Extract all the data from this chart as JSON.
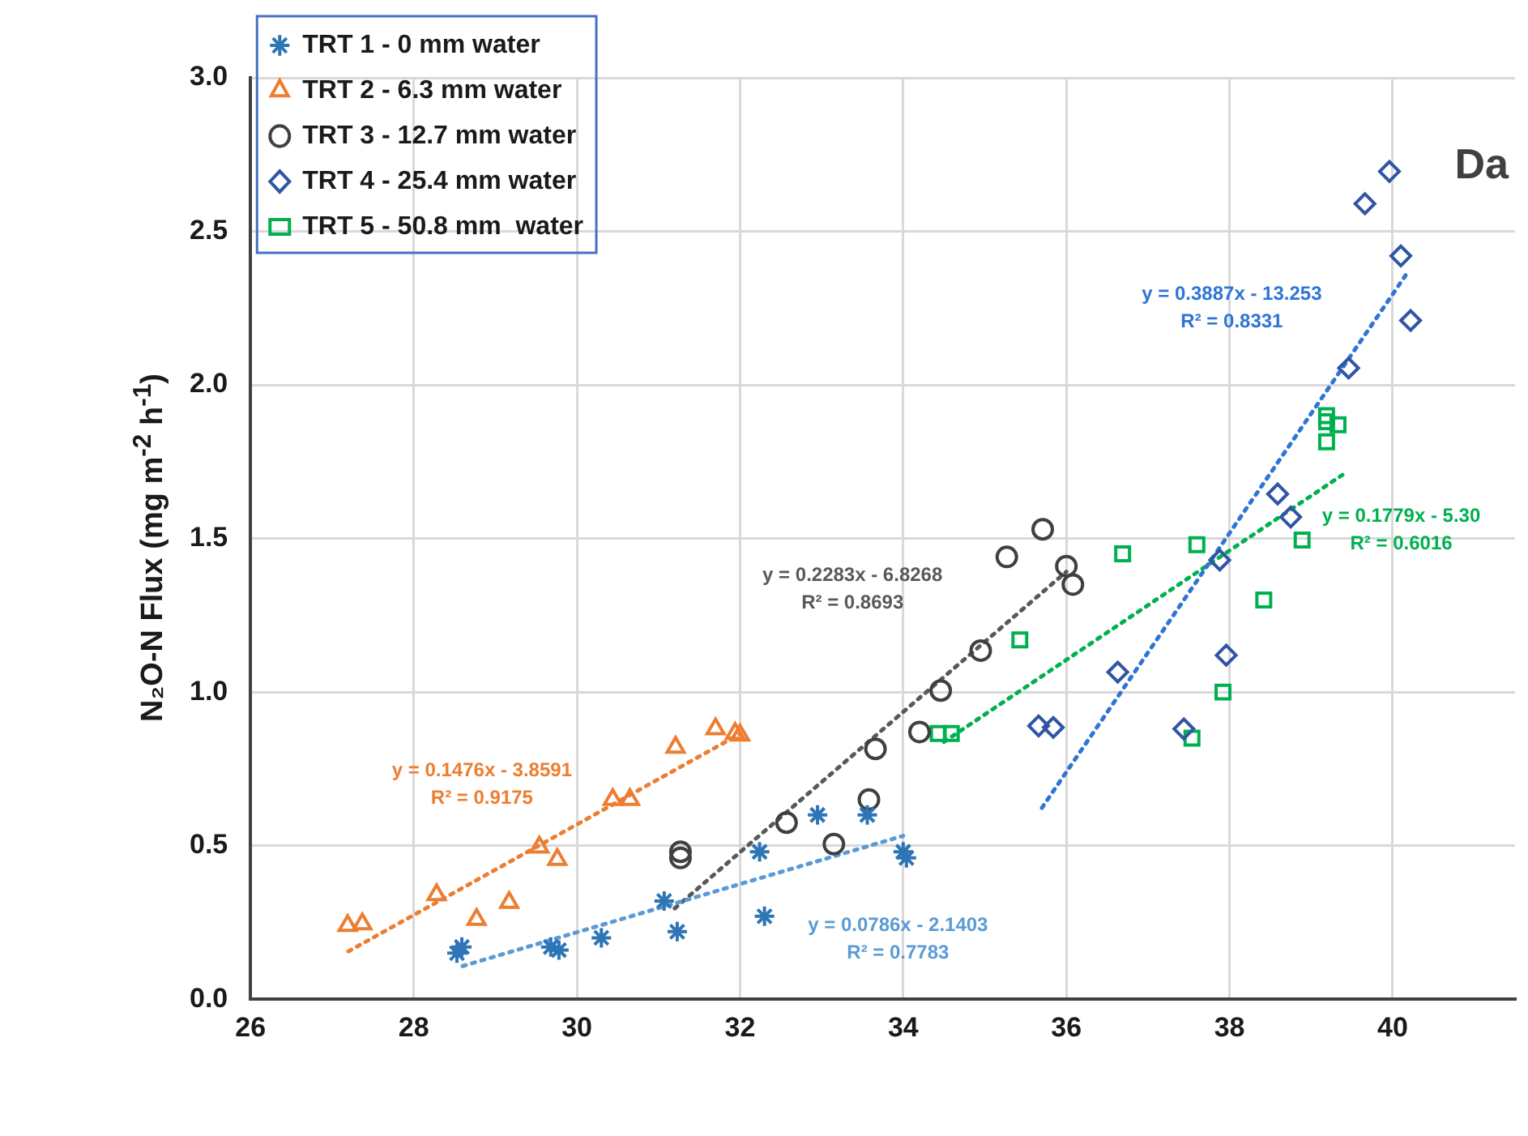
{
  "chart_data": {
    "type": "scatter",
    "title": "Da",
    "ylabel": "N₂O-N Flux (mg m$^{-2}$ h$^{-1}$)",
    "xlim": [
      26,
      41.5
    ],
    "xticks": [
      26,
      28,
      30,
      32,
      34,
      36,
      38,
      40
    ],
    "ylim": [
      0,
      3
    ],
    "yticks": [
      {
        "value": 0,
        "label": "0.0"
      },
      {
        "value": 0.5,
        "label": "0.5"
      },
      {
        "value": 1,
        "label": "1.0"
      },
      {
        "value": 1.5,
        "label": "1.5"
      },
      {
        "value": 2,
        "label": "2.0"
      },
      {
        "value": 2.5,
        "label": "2.5"
      },
      {
        "value": 3,
        "label": "3.0"
      }
    ],
    "grid": true,
    "legend": "top left",
    "series": [
      {
        "name": "TRT 1 - 0 mm water",
        "color": "#2e75b6",
        "marker": "cross",
        "x": [
          28.53,
          28.59,
          29.68,
          29.78,
          30.3,
          31.07,
          31.23,
          32.24,
          32.3,
          32.95,
          33.56,
          34.0,
          34.04
        ],
        "values": [
          0.15,
          0.17,
          0.17,
          0.16,
          0.2,
          0.32,
          0.22,
          0.48,
          0.27,
          0.6,
          0.6,
          0.48,
          0.46
        ]
      },
      {
        "name": "TRT 2 - 6.3 mm water",
        "color": "#ed7d31",
        "marker": "triangle",
        "x": [
          27.19,
          27.37,
          28.28,
          28.77,
          29.17,
          29.54,
          29.76,
          30.44,
          30.65,
          31.21,
          31.7,
          31.94,
          32.0
        ],
        "values": [
          0.24,
          0.245,
          0.34,
          0.26,
          0.315,
          0.495,
          0.455,
          0.65,
          0.65,
          0.82,
          0.88,
          0.865,
          0.86
        ]
      },
      {
        "name": "TRT 3 - 12.7 mm water",
        "color": "#404040",
        "marker": "circle",
        "x": [
          31.27,
          31.27,
          32.57,
          33.15,
          33.58,
          33.66,
          34.2,
          34.46,
          34.95,
          35.27,
          35.71,
          36.0,
          36.08
        ],
        "values": [
          0.48,
          0.46,
          0.575,
          0.505,
          0.65,
          0.815,
          0.87,
          1.005,
          1.135,
          1.44,
          1.53,
          1.41,
          1.35
        ]
      },
      {
        "name": "TRT 4 - 25.4 mm water",
        "color": "#2f55a4",
        "marker": "diamond",
        "x": [
          35.66,
          35.84,
          36.63,
          37.44,
          37.88,
          37.96,
          38.59,
          38.75,
          39.46,
          39.66,
          39.96,
          40.1,
          40.22
        ],
        "values": [
          0.89,
          0.885,
          1.065,
          0.88,
          1.43,
          1.12,
          1.645,
          1.57,
          2.055,
          2.59,
          2.695,
          2.42,
          2.21
        ]
      },
      {
        "name": "TRT 5 - 50.8 mm  water",
        "color": "#00b050",
        "marker": "square",
        "x": [
          34.43,
          34.59,
          35.43,
          36.69,
          37.6,
          37.54,
          37.92,
          38.42,
          38.89,
          39.19,
          39.19,
          39.33,
          39.19
        ],
        "values": [
          0.865,
          0.865,
          1.17,
          1.45,
          1.48,
          0.85,
          1.0,
          1.3,
          1.495,
          1.88,
          1.815,
          1.87,
          1.9
        ]
      },
      {
        "type": "line",
        "color": "#5b9bd5",
        "marker": "none",
        "line_style": "dotted",
        "x": [
          28.6,
          34.0
        ],
        "values": [
          0.108,
          0.532
        ]
      },
      {
        "type": "line",
        "color": "#ed7d31",
        "marker": "none",
        "line_style": "dotted",
        "x": [
          27.2,
          32.0
        ],
        "values": [
          0.156,
          0.864
        ]
      },
      {
        "type": "line",
        "color": "#595959",
        "marker": "none",
        "line_style": "dotted",
        "x": [
          31.2,
          36.0
        ],
        "values": [
          0.296,
          1.392
        ]
      },
      {
        "type": "line",
        "color": "#2e75d6",
        "marker": "none",
        "line_style": "dotted",
        "x": [
          35.7,
          40.2
        ],
        "values": [
          0.623,
          2.373
        ]
      },
      {
        "type": "line",
        "color": "#00b050",
        "marker": "none",
        "line_style": "dotted",
        "x": [
          34.5,
          39.4
        ],
        "values": [
          0.838,
          1.71
        ]
      }
    ],
    "annotations": [
      "y = 0.0786x - 2.1403\nR² = 0.7783",
      "y = 0.1476x - 3.8591\nR² = 0.9175",
      "y = 0.2283x - 6.8268\nR² = 0.8693",
      "y = 0.3887x - 13.253\nR² = 0.8331",
      "y = 0.1779x - 5.30\nR² = 0.6016"
    ]
  }
}
